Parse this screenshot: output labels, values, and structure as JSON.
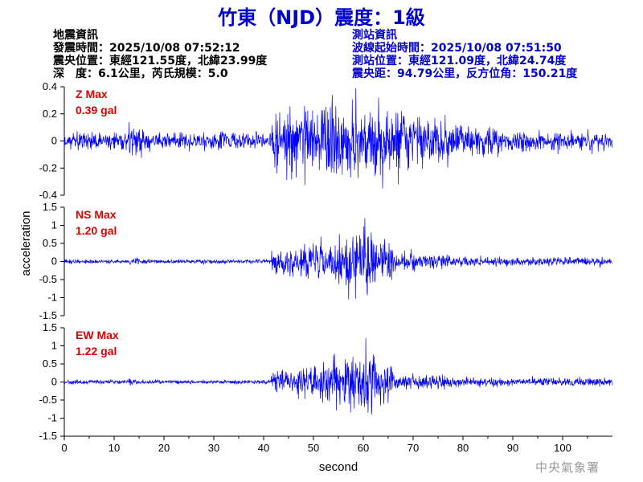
{
  "title": "竹東（NJD）震度：1級",
  "quake_info": {
    "heading": "地震資訊",
    "origin_time": "發震時間：2025/10/08 07:52:12",
    "epicenter": "震央位置：東經121.55度，北緯23.99度",
    "depth_mag": "深　度：6.1公里，芮氏規模：5.0"
  },
  "station_info": {
    "heading": "測站資訊",
    "wave_start": "波線起始時間：2025/10/08 07:51:50",
    "station_pos": "測站位置：東經121.09度，北緯24.74度",
    "distance": "震央距：94.79公里，反方位角：150.21度"
  },
  "footer": "中央氣象署",
  "colors": {
    "title": "#0000cc",
    "trace": "#0000ff",
    "label": "#e00000",
    "footer": "#9a9a9a"
  },
  "chart_data": {
    "type": "line",
    "xlabel": "second",
    "ylabel": "acceleration",
    "xlim": [
      0,
      110
    ],
    "xticks": [
      0,
      10,
      20,
      30,
      40,
      50,
      60,
      70,
      80,
      90,
      100
    ],
    "panels": [
      {
        "label": "Z Max",
        "max_text": "0.39 gal",
        "ylim": [
          -0.4,
          0.4
        ],
        "yticks": [
          -0.4,
          -0.2,
          0,
          0.2,
          0.4
        ],
        "yticklabels": [
          "-0.4",
          "-0.2",
          "0",
          "0.2",
          "0.4"
        ],
        "noise": 0.045,
        "strong_amp": 0.19,
        "peak": 0.39,
        "peak_t": 58.5
      },
      {
        "label": "NS Max",
        "max_text": "1.20 gal",
        "ylim": [
          -1.5,
          1.5
        ],
        "yticks": [
          -1.5,
          -1,
          -0.5,
          0,
          0.5,
          1,
          1.5
        ],
        "yticklabels": [
          "-1.5",
          "-1",
          "-0.5",
          "0",
          "0.5",
          "1",
          "1.5"
        ],
        "noise": 0.04,
        "strong_amp": 0.42,
        "peak": 1.2,
        "peak_t": 60.3
      },
      {
        "label": "EW Max",
        "max_text": "1.22 gal",
        "ylim": [
          -1.5,
          1.5
        ],
        "yticks": [
          -1.5,
          -1,
          -0.5,
          0,
          0.5,
          1,
          1.5
        ],
        "yticklabels": [
          "-1.5",
          "-1",
          "-0.5",
          "0",
          "0.5",
          "1",
          "1.5"
        ],
        "noise": 0.04,
        "strong_amp": 0.4,
        "peak": 1.22,
        "peak_t": 60.5
      }
    ]
  }
}
